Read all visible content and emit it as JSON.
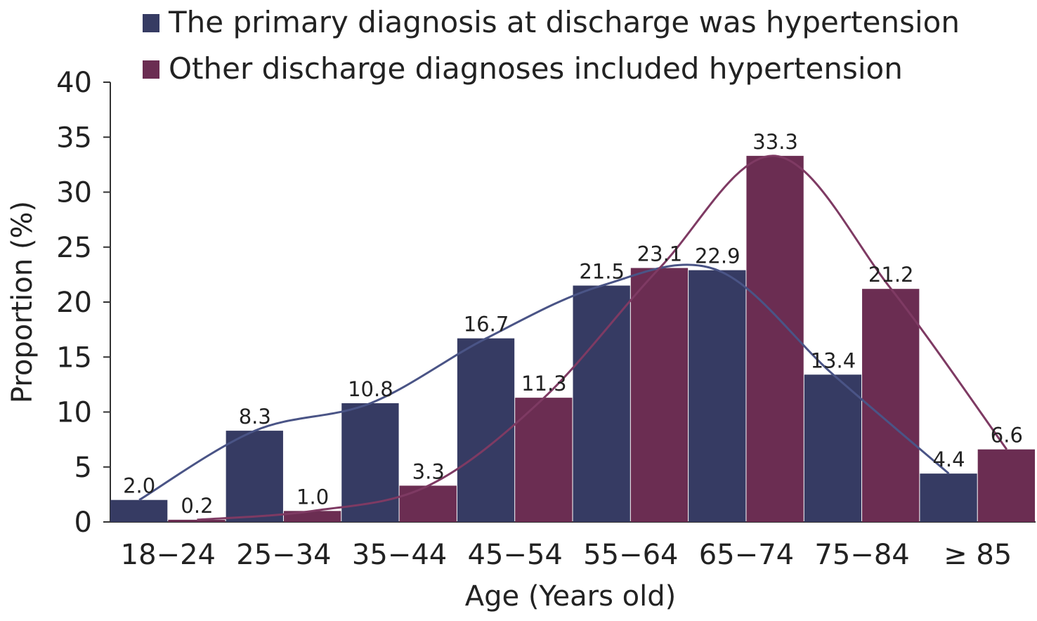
{
  "chart_data": {
    "type": "bar",
    "categories": [
      "18−24",
      "25−34",
      "35−44",
      "45−54",
      "55−64",
      "65−74",
      "75−84",
      "≥ 85"
    ],
    "series": [
      {
        "name": "The primary diagnosis at discharge was hypertension",
        "values": [
          2.0,
          8.3,
          10.8,
          16.7,
          21.5,
          22.9,
          13.4,
          4.4
        ],
        "labels": [
          "2.0",
          "8.3",
          "10.8",
          "16.7",
          "21.5",
          "22.9",
          "13.4",
          "4.4"
        ],
        "color": "#363b63"
      },
      {
        "name": "Other discharge diagnoses included hypertension",
        "values": [
          0.2,
          1.0,
          3.3,
          11.3,
          23.1,
          33.3,
          21.2,
          6.6
        ],
        "labels": [
          "0.2",
          "1.0",
          "3.3",
          "11.3",
          "23.1",
          "33.3",
          "21.2",
          "6.6"
        ],
        "color": "#6b2d52"
      }
    ],
    "trend_lines": true,
    "xlabel": "Age (Years old)",
    "ylabel": "Proportion (%)",
    "ylim": [
      0,
      40
    ],
    "yticks": [
      0,
      5,
      10,
      15,
      20,
      25,
      30,
      35,
      40
    ],
    "grid": false,
    "legend_position": "top"
  }
}
